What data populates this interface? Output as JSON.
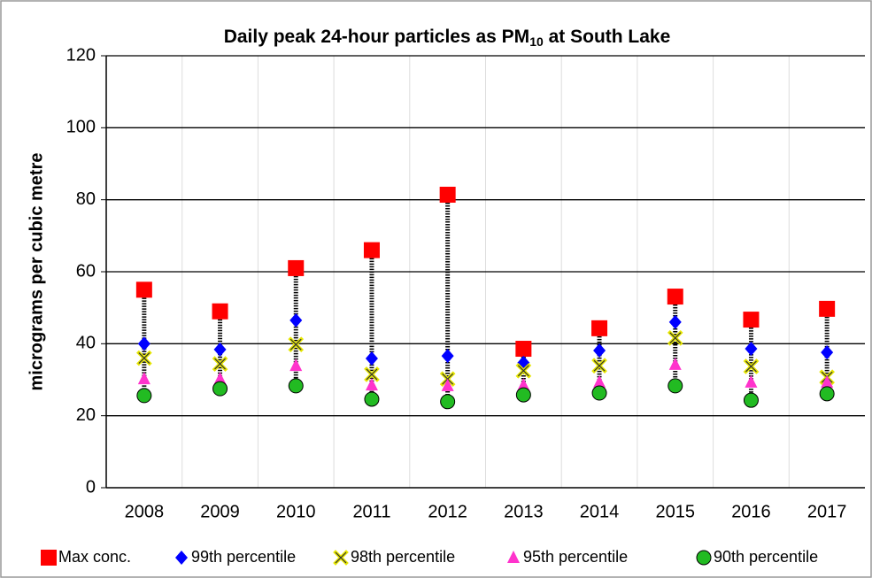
{
  "chart_data": {
    "type": "dot",
    "title": [
      "Daily peak 24-hour particles as PM",
      "10",
      " at South Lake"
    ],
    "ylabel": "micrograms per cubic metre",
    "categories": [
      "2008",
      "2009",
      "2010",
      "2011",
      "2012",
      "2013",
      "2014",
      "2015",
      "2016",
      "2017"
    ],
    "series": [
      {
        "name": "Max conc.",
        "color": "#ff0000",
        "marker": "square",
        "values": [
          55,
          49,
          61,
          66,
          81.4,
          38.6,
          44.3,
          53.1,
          46.7,
          49.7
        ]
      },
      {
        "name": "99th percentile",
        "color": "#0000ff",
        "marker": "diamond",
        "values": [
          40,
          38.4,
          46.5,
          35.9,
          36.6,
          34.7,
          38.1,
          46,
          38.6,
          37.6
        ]
      },
      {
        "name": "98th percentile",
        "color": "#e6e600",
        "marker": "x",
        "values": [
          36,
          34.4,
          39.8,
          31.5,
          30.2,
          32.5,
          33.9,
          41.6,
          33.7,
          30.7
        ]
      },
      {
        "name": "95th percentile",
        "color": "#ff33cc",
        "marker": "triangle",
        "values": [
          30.2,
          30.2,
          33.9,
          28.5,
          28.3,
          28.5,
          29.3,
          34.2,
          29.3,
          29.3
        ]
      },
      {
        "name": "90th percentile",
        "color": "#22bb22",
        "marker": "circle",
        "values": [
          25.6,
          27.5,
          28.3,
          24.6,
          23.9,
          25.8,
          26.3,
          28.3,
          24.3,
          26.1
        ]
      }
    ],
    "ylim": [
      0,
      120
    ],
    "yticks": [
      0,
      20,
      40,
      60,
      80,
      100,
      120
    ],
    "grid": true,
    "legend": "bottom"
  }
}
